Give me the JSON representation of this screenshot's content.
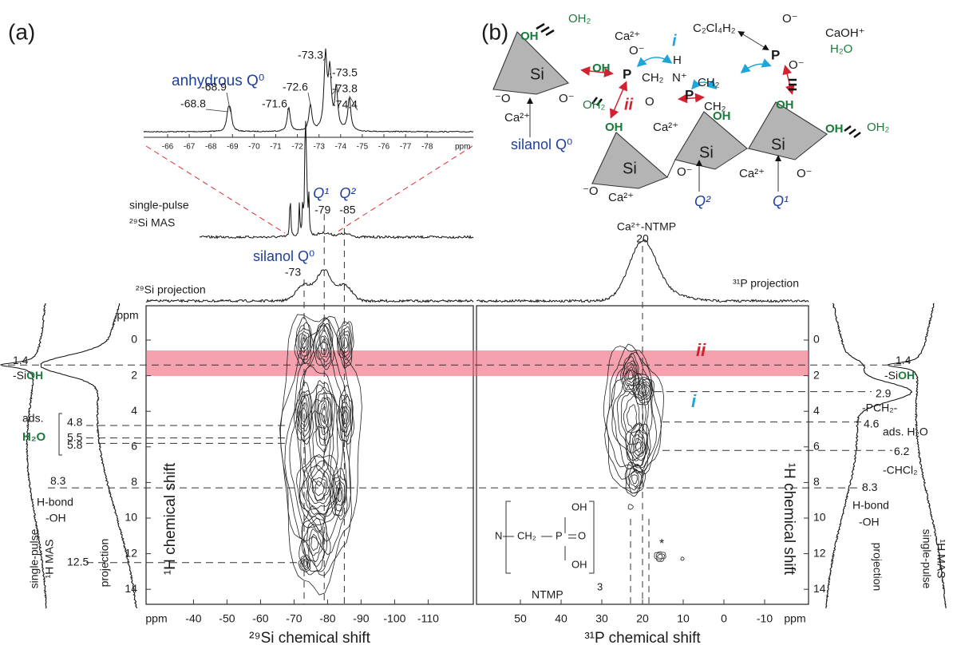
{
  "panel_a": {
    "label": "(a)",
    "inset": {
      "title": "anhydrous Q⁰",
      "peaks": [
        -68.8,
        -68.9,
        -71.6,
        -72.6,
        -73.3,
        -73.5,
        -73.8,
        -74.4
      ],
      "ticks": [
        -66,
        -67,
        -68,
        -69,
        -70,
        -71,
        -72,
        -73,
        -74,
        -75,
        -76,
        -77,
        -78
      ],
      "unit": "ppm"
    },
    "single_pulse": {
      "label_1": "single-pulse",
      "label_2": "²⁹Si MAS",
      "q1": "Q¹",
      "q2": "Q²",
      "shift_q1": -79,
      "shift_q2": -85
    },
    "projection": {
      "silanol": "silanol Q⁰",
      "shift": -73,
      "label": "²⁹Si projection"
    },
    "plot": {
      "xticks": [
        -40,
        -50,
        -60,
        -70,
        -80,
        -90,
        -100,
        -110
      ],
      "x_unit": "ppm",
      "yticks": [
        0,
        2,
        4,
        6,
        8,
        10,
        12,
        14
      ],
      "y_unit": "ppm",
      "xlabel": "²⁹Si chemical shift",
      "ylabel": "¹H chemical shift"
    },
    "annotations": {
      "siloh_shift": 1.4,
      "siloh_si": "-Si",
      "siloh_oh": "OH",
      "ads": "ads.",
      "h2o": "H₂O",
      "water_shifts": [
        4.8,
        5.5,
        5.8
      ],
      "hbond_shift": 8.3,
      "hbond": "H-bond",
      "oh": "-OH",
      "shift_12": 12.5
    },
    "side": {
      "single_pulse": "single-pulse",
      "h_mas": "¹H MAS",
      "projection": "projection"
    }
  },
  "panel_b": {
    "label": "(b)",
    "structure": [
      "OH",
      "OH₂",
      "Ca²⁺",
      "O⁻",
      "i",
      "C₂Cl₄H₂",
      "O⁻",
      "CaOH⁺",
      "H₂O",
      "OH",
      "P",
      "CH₂",
      "H",
      "N⁺",
      "CH₂",
      "P",
      "O⁻",
      "Si",
      "ii",
      "P",
      "CH₂",
      "O",
      "OH",
      "OH",
      "⁻O",
      "O⁻",
      "Ca²⁺",
      "OH₂",
      "OH",
      "Ca²⁺",
      "silanol Q⁰",
      "Si",
      "Si",
      "Si",
      "OH",
      "OH₂",
      "⁻O",
      "Ca²⁺",
      "O⁻",
      "Ca²⁺",
      "O⁻",
      "Q²",
      "Q¹"
    ],
    "projection": {
      "title": "Ca²⁺-NTMP",
      "shift": 20,
      "label": "³¹P projection"
    },
    "plot": {
      "xticks": [
        50,
        40,
        30,
        20,
        10,
        0,
        -10
      ],
      "x_unit": "ppm",
      "yticks": [
        0,
        2,
        4,
        6,
        8,
        10,
        12,
        14
      ],
      "xlabel": "³¹P chemical shift",
      "ylabel": "¹H chemical shift"
    },
    "region_i": "i",
    "region_ii": "ii",
    "annotations": {
      "siloh_shift": 1.4,
      "siloh_si": "-Si",
      "siloh_oh": "OH",
      "pch2_shift": 2.9,
      "pch2": "-PCH₂-",
      "water_shift": 4.6,
      "water": "ads. H₂O",
      "chcl2_shift": 6.2,
      "chcl2": "-CHCl₂",
      "hbond_shift": 8.3,
      "hbond": "H-bond",
      "oh": "-OH"
    },
    "ntmp": {
      "n": "N",
      "ch2": "CH₂",
      "p": "P",
      "oh_top": "OH",
      "o": "O",
      "oh_bottom": "OH",
      "repeat": 3,
      "name": "NTMP",
      "star": "*"
    },
    "side": {
      "projection": "projection",
      "single_pulse": "single-pulse",
      "h_mas": "¹H MAS"
    }
  }
}
